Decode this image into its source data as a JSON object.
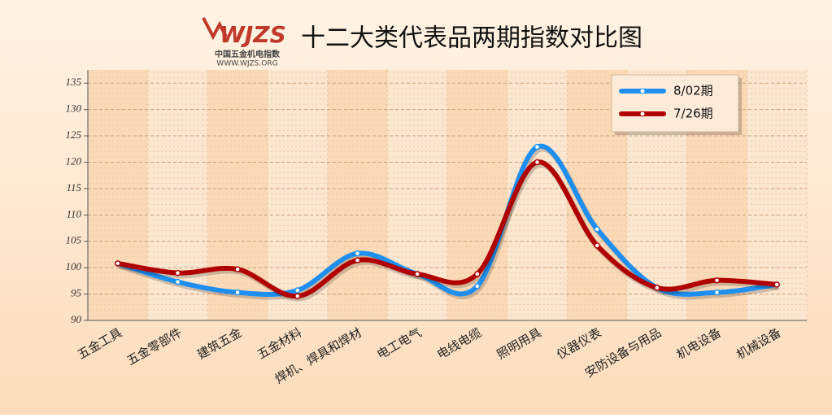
{
  "chart_data": {
    "type": "line",
    "title": "十二大类代表品两期指数对比图",
    "logo": {
      "mark": "WJZS",
      "name": "中国五金机电指数",
      "url": "WWW.WJZS.ORG"
    },
    "categories": [
      "五金工具",
      "五金零部件",
      "建筑五金",
      "五金材料",
      "焊机、焊具和焊材",
      "电工电气",
      "电线电缆",
      "照明用具",
      "仪器仪表",
      "安防设备与用品",
      "机电设备",
      "机械设备"
    ],
    "series": [
      {
        "name": "8/02期",
        "color": "#1e8fef",
        "values": [
          100.8,
          97.3,
          95.3,
          95.7,
          102.7,
          98.8,
          96.5,
          122.9,
          107.3,
          96.2,
          95.3,
          96.8
        ]
      },
      {
        "name": "7/26期",
        "color": "#b00000",
        "values": [
          100.8,
          99.0,
          99.7,
          94.6,
          101.4,
          98.8,
          98.8,
          120.0,
          104.2,
          96.2,
          97.6,
          96.8
        ]
      }
    ],
    "ylim": [
      90,
      137.5
    ],
    "yticks": [
      90,
      95,
      100,
      105,
      110,
      115,
      120,
      125,
      130,
      135
    ],
    "grid": true,
    "legend": "top-right"
  }
}
